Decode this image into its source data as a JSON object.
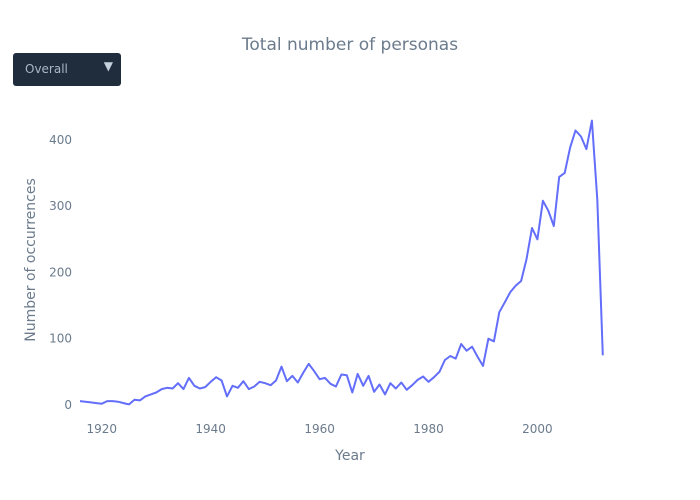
{
  "dropdown": {
    "selected": "Overall",
    "arrow": "▼"
  },
  "chart_data": {
    "type": "line",
    "title": "Total number of personas",
    "xlabel": "Year",
    "ylabel": "Number of occurrences",
    "xlim": [
      1916,
      2017
    ],
    "ylim": [
      -15,
      460
    ],
    "grid": false,
    "x_ticks": [
      1920,
      1940,
      1960,
      1980,
      2000
    ],
    "y_ticks": [
      0,
      100,
      200,
      300,
      400
    ],
    "series": [
      {
        "color": "#636efa",
        "x": [
          1916,
          1917,
          1918,
          1919,
          1920,
          1921,
          1922,
          1923,
          1924,
          1925,
          1926,
          1927,
          1928,
          1929,
          1930,
          1931,
          1932,
          1933,
          1934,
          1935,
          1936,
          1937,
          1938,
          1939,
          1940,
          1941,
          1942,
          1943,
          1944,
          1945,
          1946,
          1947,
          1948,
          1949,
          1950,
          1951,
          1952,
          1953,
          1954,
          1955,
          1956,
          1957,
          1958,
          1959,
          1960,
          1961,
          1962,
          1963,
          1964,
          1965,
          1966,
          1967,
          1968,
          1969,
          1970,
          1971,
          1972,
          1973,
          1974,
          1975,
          1976,
          1977,
          1978,
          1979,
          1980,
          1981,
          1982,
          1983,
          1984,
          1985,
          1986,
          1987,
          1988,
          1989,
          1990,
          1991,
          1992,
          1993,
          1994,
          1995,
          1996,
          1997,
          1998,
          1999,
          2000,
          2001,
          2002,
          2003,
          2004,
          2005,
          2006,
          2007,
          2008,
          2009,
          2010,
          2011,
          2012
        ],
        "y": [
          6,
          5,
          4,
          3,
          2,
          6,
          6,
          5,
          3,
          1,
          8,
          7,
          13,
          16,
          19,
          24,
          26,
          25,
          33,
          24,
          41,
          29,
          25,
          27,
          35,
          42,
          37,
          13,
          29,
          26,
          36,
          24,
          28,
          35,
          33,
          30,
          37,
          58,
          36,
          44,
          34,
          49,
          62,
          51,
          39,
          41,
          32,
          28,
          46,
          45,
          19,
          47,
          29,
          44,
          20,
          31,
          16,
          33,
          25,
          34,
          23,
          30,
          38,
          43,
          35,
          42,
          50,
          68,
          74,
          70,
          92,
          82,
          88,
          73,
          59,
          100,
          96,
          140,
          155,
          170,
          180,
          187,
          220,
          267,
          250,
          308,
          293,
          270,
          344,
          350,
          388,
          414,
          405,
          386,
          429,
          310,
          75
        ]
      }
    ]
  }
}
